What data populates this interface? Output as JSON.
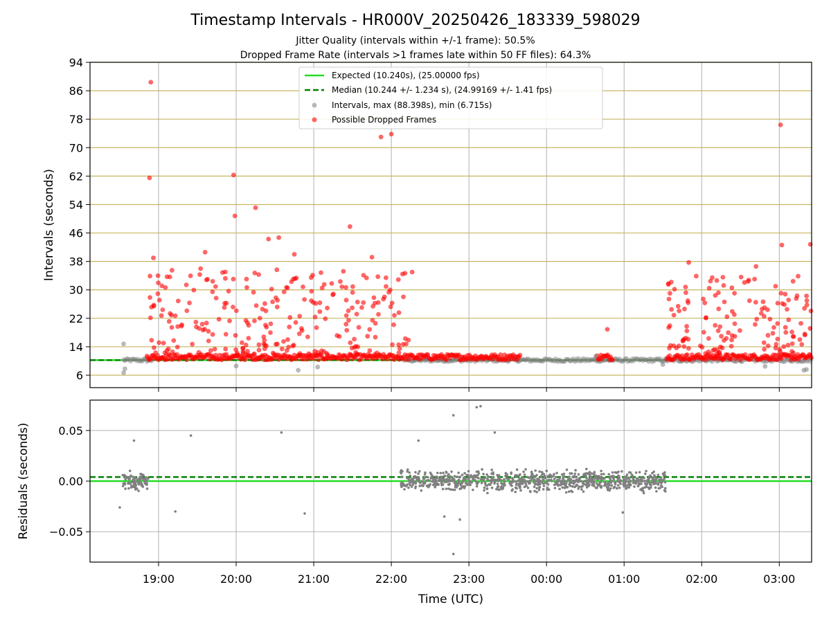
{
  "title": "Timestamp Intervals - HR000V_20250426_183339_598029",
  "subtitle_1": "Jitter Quality (intervals within +/-1 frame): 50.5%",
  "subtitle_2": "Dropped Frame Rate (intervals >1 frames late within 50 FF files): 64.3%",
  "colors": {
    "expected": "#22dd22",
    "median": "#008000",
    "intervals": "#808080",
    "dropped": "#ff0000",
    "hgrid_top": "#c8b560",
    "grid": "#b0b0b0"
  },
  "chart_data": [
    {
      "type": "scatter",
      "ylabel": "Intervals (seconds)",
      "yticks": [
        6,
        14,
        22,
        30,
        38,
        46,
        54,
        62,
        70,
        78,
        86,
        94
      ],
      "ytick_labels": [
        "6",
        "14",
        "22",
        "30",
        "38",
        "46",
        "54",
        "62",
        "70",
        "78",
        "86",
        "94"
      ],
      "ylim": [
        2.5,
        94
      ],
      "xlim": [
        "18:07",
        "03:25"
      ],
      "grid": true,
      "legend_position": "upper-center",
      "legend": [
        {
          "label": "Expected (10.240s), (25.00000 fps)",
          "style": "solid-line",
          "color": "#22dd22"
        },
        {
          "label": "Median (10.244 +/- 1.234 s), (24.99169 +/- 1.41 fps)",
          "style": "dashed-line",
          "color": "#008000"
        },
        {
          "label": "Intervals, max (88.398s), min (6.715s)",
          "style": "marker",
          "color": "#808080"
        },
        {
          "label": "Possible Dropped Frames",
          "style": "marker",
          "color": "#ff0000"
        }
      ],
      "expected_line": 10.24,
      "median_line": 10.244,
      "interval_max": 88.398,
      "interval_min": 6.715,
      "series": [
        {
          "name": "Possible Dropped Frames",
          "points": [
            {
              "x": "18:54",
              "y": 88.4
            },
            {
              "x": "18:53",
              "y": 61.5
            },
            {
              "x": "19:58",
              "y": 62.3
            },
            {
              "x": "19:59",
              "y": 50.8
            },
            {
              "x": "20:15",
              "y": 53.1
            },
            {
              "x": "20:25",
              "y": 44.3
            },
            {
              "x": "20:33",
              "y": 44.7
            },
            {
              "x": "21:28",
              "y": 47.8
            },
            {
              "x": "21:52",
              "y": 73.0
            },
            {
              "x": "22:00",
              "y": 73.8
            },
            {
              "x": "00:47",
              "y": 18.9
            },
            {
              "x": "03:01",
              "y": 76.4
            },
            {
              "x": "03:02",
              "y": 42.6
            },
            {
              "x": "03:24",
              "y": 42.8
            },
            {
              "x": "18:56",
              "y": 39.0
            },
            {
              "x": "19:36",
              "y": 40.6
            },
            {
              "x": "20:45",
              "y": 40.0
            },
            {
              "x": "21:45",
              "y": 39.2
            },
            {
              "x": "01:50",
              "y": 37.7
            },
            {
              "x": "02:42",
              "y": 36.6
            }
          ]
        },
        {
          "name": "Intervals",
          "points": [
            {
              "x": "18:33",
              "y": 14.8
            },
            {
              "x": "18:33",
              "y": 6.7
            },
            {
              "x": "18:34",
              "y": 7.8
            },
            {
              "x": "20:00",
              "y": 8.6
            },
            {
              "x": "20:48",
              "y": 7.4
            },
            {
              "x": "21:03",
              "y": 8.3
            },
            {
              "x": "00:38",
              "y": 11.3
            },
            {
              "x": "01:30",
              "y": 9.0
            },
            {
              "x": "02:49",
              "y": 8.5
            },
            {
              "x": "03:19",
              "y": 7.4
            },
            {
              "x": "03:21",
              "y": 7.6
            }
          ]
        }
      ]
    },
    {
      "type": "scatter",
      "xlabel": "Time (UTC)",
      "ylabel": "Residuals (seconds)",
      "yticks": [
        -0.05,
        0.0,
        0.05
      ],
      "ytick_labels": [
        "−0.05",
        "0.00",
        "0.05"
      ],
      "ylim": [
        -0.08,
        0.08
      ],
      "xticks": [
        "19:00",
        "20:00",
        "21:00",
        "22:00",
        "23:00",
        "00:00",
        "01:00",
        "02:00",
        "03:00"
      ],
      "xtick_labels": [
        "19:00",
        "20:00",
        "21:00",
        "22:00",
        "23:00",
        "00:00",
        "01:00",
        "02:00",
        "03:00"
      ],
      "expected_line": 0.0,
      "median_line": 0.004,
      "grid": true,
      "series": [
        {
          "name": "Residuals",
          "points": [
            {
              "x": "18:41",
              "y": 0.04
            },
            {
              "x": "18:30",
              "y": -0.026
            },
            {
              "x": "19:13",
              "y": -0.03
            },
            {
              "x": "19:25",
              "y": 0.045
            },
            {
              "x": "20:35",
              "y": 0.048
            },
            {
              "x": "20:53",
              "y": -0.032
            },
            {
              "x": "22:21",
              "y": 0.04
            },
            {
              "x": "22:48",
              "y": -0.072
            },
            {
              "x": "22:48",
              "y": 0.065
            },
            {
              "x": "23:06",
              "y": 0.073
            },
            {
              "x": "23:09",
              "y": 0.074
            },
            {
              "x": "23:20",
              "y": 0.048
            },
            {
              "x": "00:59",
              "y": -0.031
            },
            {
              "x": "22:41",
              "y": -0.035
            },
            {
              "x": "22:53",
              "y": -0.038
            }
          ]
        }
      ]
    }
  ]
}
